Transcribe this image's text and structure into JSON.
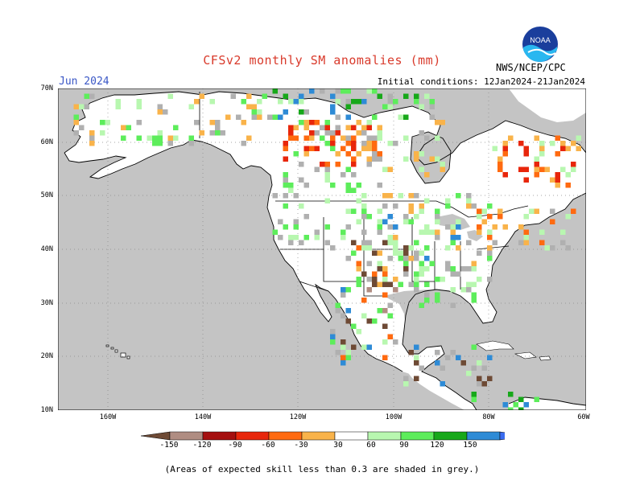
{
  "header": {
    "title": "CFSv2 monthly SM anomalies (mm)",
    "month": "Jun 2024",
    "initial_conditions": "Initial conditions: 12Jan2024-21Jan2024",
    "agency": "NWS/NCEP/CPC",
    "logo_text": "NOAA"
  },
  "axes": {
    "lat_labels": [
      "70N",
      "60N",
      "50N",
      "40N",
      "30N",
      "20N",
      "10N"
    ],
    "lon_labels": [
      "160W",
      "140W",
      "120W",
      "100W",
      "80W",
      "60W"
    ]
  },
  "colorbar": {
    "labels": [
      "-150",
      "-120",
      "-90",
      "-60",
      "-30",
      "30",
      "60",
      "90",
      "120",
      "150"
    ],
    "colors": [
      "#6e4a35",
      "#b08d82",
      "#a50f0f",
      "#e8260b",
      "#ff6a10",
      "#f9b34a",
      "#ffffff",
      "#b8f7b0",
      "#5ded5b",
      "#17a81a",
      "#2e8bd6",
      "#3a6cf0"
    ]
  },
  "colors": {
    "land": "#ffffff",
    "ocean": "#c4c4c4",
    "low_skill": "#b0b0b0"
  },
  "footnote": "(Areas of expected skill less than 0.3 are shaded in grey.)"
}
